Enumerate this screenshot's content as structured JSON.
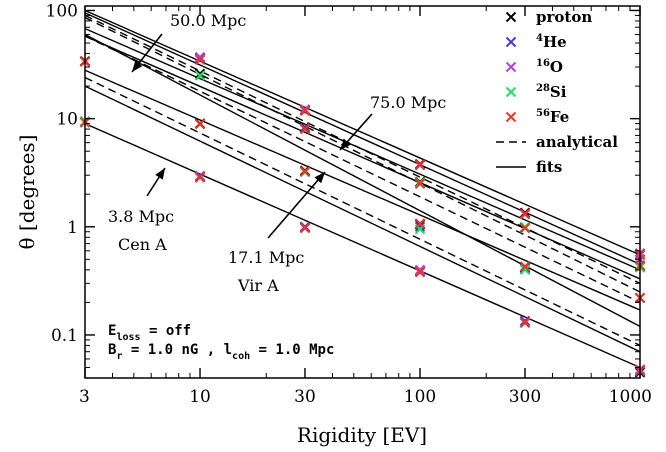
{
  "chart_data": {
    "type": "scatter",
    "xlabel": "Rigidity   [EV]",
    "ylabel": "θ   [degrees]",
    "x_scale": "log",
    "y_scale": "log",
    "xlim": [
      3,
      1000
    ],
    "ylim": [
      0.04,
      110
    ],
    "x_ticks": [
      {
        "value": 3,
        "label": "3"
      },
      {
        "value": 10,
        "label": "10"
      },
      {
        "value": 30,
        "label": "30"
      },
      {
        "value": 100,
        "label": "100"
      },
      {
        "value": 300,
        "label": "300"
      },
      {
        "value": 1000,
        "label": "1000"
      }
    ],
    "y_ticks": [
      {
        "value": 0.1,
        "label": "0.1"
      },
      {
        "value": 1,
        "label": "1"
      },
      {
        "value": 10,
        "label": "10"
      },
      {
        "value": 100,
        "label": "100"
      }
    ],
    "legend": {
      "placement": "top-right",
      "entries": [
        {
          "sup": "",
          "label": "proton",
          "color": "#000000",
          "kind": "marker"
        },
        {
          "sup": "4",
          "label": "He",
          "color": "#3a3ae6",
          "kind": "marker"
        },
        {
          "sup": "16",
          "label": "O",
          "color": "#b040e0",
          "kind": "marker"
        },
        {
          "sup": "28",
          "label": "Si",
          "color": "#20e060",
          "kind": "marker"
        },
        {
          "sup": "56",
          "label": "Fe",
          "color": "#ee3322",
          "kind": "marker"
        },
        {
          "sup": "",
          "label": "analytical",
          "color": "#000000",
          "kind": "dashed"
        },
        {
          "sup": "",
          "label": "fits",
          "color": "#000000",
          "kind": "solid"
        }
      ]
    },
    "marker_series": [
      {
        "name": "proton",
        "color": "#000000",
        "points": [
          [
            3,
            9.4
          ],
          [
            10,
            2.9
          ],
          [
            30,
            1.0
          ],
          [
            100,
            0.39
          ],
          [
            300,
            0.13
          ],
          [
            1000,
            0.045
          ],
          [
            3,
            34
          ],
          [
            10,
            9
          ],
          [
            30,
            3.3
          ],
          [
            100,
            1.05
          ],
          [
            300,
            0.42
          ],
          [
            1000,
            0.22
          ],
          [
            10,
            36
          ],
          [
            30,
            12
          ],
          [
            100,
            3.8
          ],
          [
            300,
            1.35
          ],
          [
            1000,
            0.55
          ],
          [
            10,
            26
          ],
          [
            30,
            8.3
          ],
          [
            100,
            2.6
          ],
          [
            300,
            0.99
          ],
          [
            1000,
            0.43
          ]
        ]
      },
      {
        "name": "4He",
        "color": "#3a3ae6",
        "points": [
          [
            10,
            2.95
          ],
          [
            30,
            1.0
          ],
          [
            100,
            0.39
          ],
          [
            300,
            0.135
          ],
          [
            1000,
            0.046
          ],
          [
            10,
            37
          ],
          [
            30,
            8.2
          ],
          [
            100,
            1.0
          ],
          [
            300,
            0.41
          ],
          [
            1000,
            0.5
          ]
        ]
      },
      {
        "name": "16O",
        "color": "#b040e0",
        "points": [
          [
            10,
            2.9
          ],
          [
            30,
            0.97
          ],
          [
            100,
            0.4
          ],
          [
            300,
            0.13
          ],
          [
            1000,
            0.048
          ],
          [
            10,
            36.5
          ],
          [
            30,
            12.2
          ],
          [
            100,
            3.7
          ],
          [
            300,
            1.3
          ],
          [
            1000,
            0.57
          ]
        ]
      },
      {
        "name": "28Si",
        "color": "#20e060",
        "points": [
          [
            3,
            9.5
          ],
          [
            10,
            25
          ],
          [
            30,
            3.2
          ],
          [
            100,
            0.95
          ],
          [
            300,
            0.4
          ],
          [
            100,
            2.55
          ],
          [
            300,
            1.0
          ],
          [
            1000,
            0.42
          ]
        ]
      },
      {
        "name": "56Fe",
        "color": "#ee3322",
        "points": [
          [
            3,
            9.2
          ],
          [
            3,
            33.5
          ],
          [
            10,
            35
          ],
          [
            10,
            8.9
          ],
          [
            10,
            2.85
          ],
          [
            30,
            11.8
          ],
          [
            30,
            8.0
          ],
          [
            30,
            3.25
          ],
          [
            30,
            0.98
          ],
          [
            100,
            3.75
          ],
          [
            100,
            2.5
          ],
          [
            100,
            1.07
          ],
          [
            100,
            0.38
          ],
          [
            300,
            1.32
          ],
          [
            300,
            0.97
          ],
          [
            300,
            0.43
          ],
          [
            300,
            0.13
          ],
          [
            1000,
            0.55
          ],
          [
            1000,
            0.44
          ],
          [
            1000,
            0.22
          ],
          [
            1000,
            0.047
          ]
        ]
      }
    ],
    "fit_lines": [
      [
        [
          3,
          100
        ],
        [
          1000,
          0.55
        ]
      ],
      [
        [
          3,
          95
        ],
        [
          1000,
          0.45
        ]
      ],
      [
        [
          3,
          68
        ],
        [
          1000,
          0.4
        ]
      ],
      [
        [
          3,
          58
        ],
        [
          1000,
          0.33
        ]
      ],
      [
        [
          3,
          28
        ],
        [
          1000,
          0.17
        ]
      ],
      [
        [
          3,
          9
        ],
        [
          1000,
          0.05
        ]
      ],
      [
        [
          3,
          60
        ],
        [
          1000,
          0.12
        ]
      ],
      [
        [
          3,
          20
        ],
        [
          1000,
          0.07
        ]
      ]
    ],
    "analytical_lines": [
      [
        [
          3,
          90
        ],
        [
          1000,
          0.3
        ]
      ],
      [
        [
          3,
          86
        ],
        [
          1000,
          0.25
        ]
      ],
      [
        [
          3,
          58
        ],
        [
          1000,
          0.2
        ]
      ],
      [
        [
          3,
          24
        ],
        [
          1000,
          0.08
        ]
      ]
    ],
    "annotations": [
      {
        "text": "50.0 Mpc",
        "sub": "",
        "from": [
          5.5,
          60
        ],
        "to": [
          5.2,
          70
        ]
      },
      {
        "text": "75.0 Mpc",
        "sub": "",
        "from": [
          50,
          20
        ],
        "to": [
          45,
          14
        ]
      },
      {
        "text": "3.8 Mpc",
        "sub": "Cen A",
        "from": [
          7.1,
          5.2
        ],
        "to": [
          8.6,
          7.5
        ]
      },
      {
        "text": "17.1 Mpc",
        "sub": "Vir A",
        "from": [
          26,
          1.8
        ],
        "to": [
          36,
          6.0
        ]
      }
    ],
    "notes": {
      "eloss_base": "E",
      "eloss_sub": "loss",
      "eloss_rest": " = off",
      "br_base": "B",
      "br_sub": "r",
      "br_rest": " = 1.0 nG   , l",
      "lcoh_sub": "coh",
      "lcoh_rest": " = 1.0 Mpc"
    }
  }
}
